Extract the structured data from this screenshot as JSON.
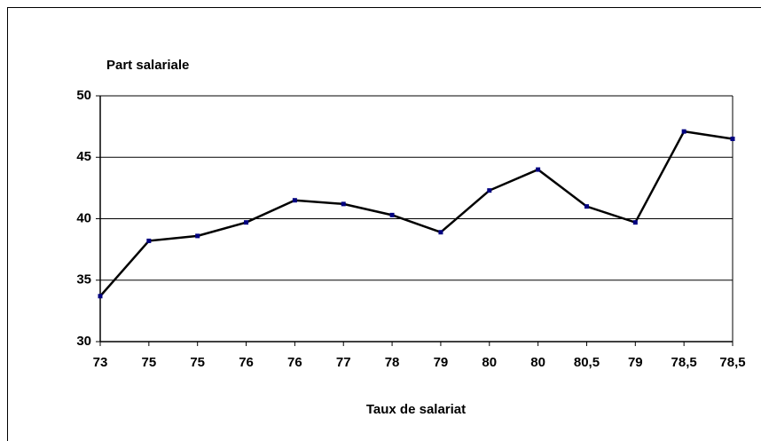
{
  "chart_data": {
    "type": "line",
    "y_label": "Part salariale",
    "x_label": "Taux de salariat",
    "categories": [
      "73",
      "75",
      "75",
      "76",
      "76",
      "77",
      "78",
      "79",
      "80",
      "80",
      "80,5",
      "79",
      "78,5",
      "78,5"
    ],
    "values": [
      33.7,
      38.2,
      38.6,
      39.7,
      41.5,
      41.2,
      40.3,
      38.9,
      42.3,
      44.0,
      41.0,
      39.7,
      47.1,
      46.5
    ],
    "color": "#000000",
    "marker_color": "#000080",
    "ylim": [
      30,
      50
    ],
    "yticks": [
      30,
      35,
      40,
      45,
      50
    ],
    "grid": true
  }
}
